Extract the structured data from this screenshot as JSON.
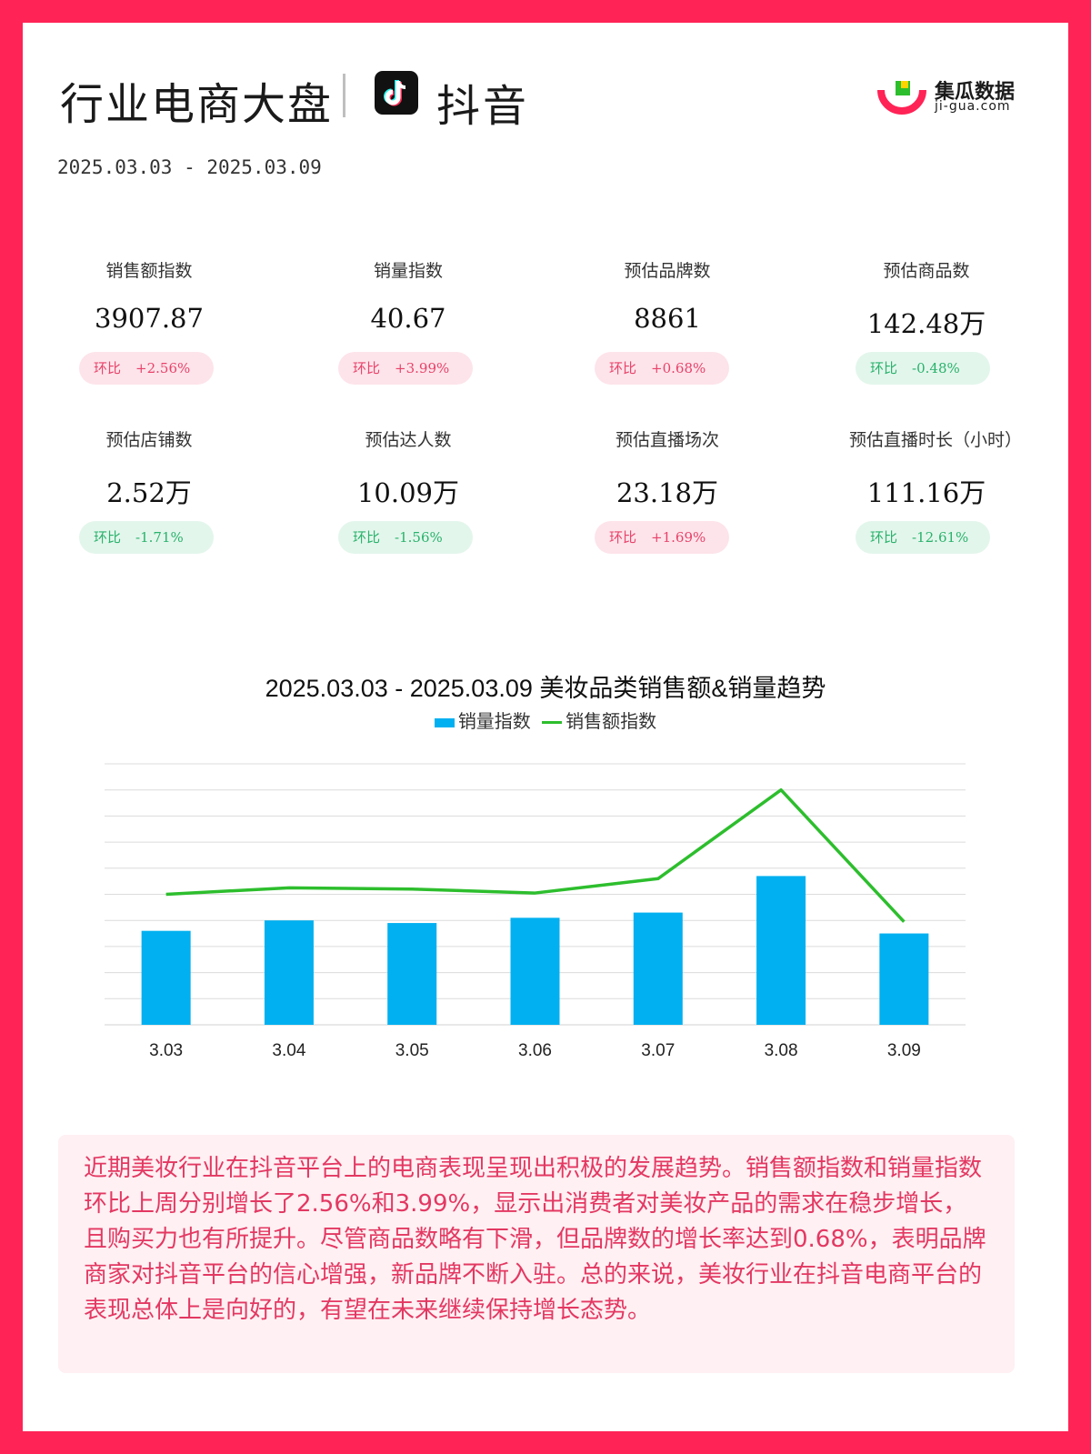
{
  "header": {
    "title": "行业电商大盘",
    "platform": "抖音",
    "date_range": "2025.03.03 - 2025.03.09",
    "logo_name": "集瓜数据",
    "logo_url": "ji-gua.com"
  },
  "colors": {
    "frame": "#ff2356",
    "up_text": "#e8426a",
    "up_bg": "#fde4ea",
    "down_text": "#29b26b",
    "down_bg": "#e3f6ec",
    "bar": "#00b0f0",
    "line": "#2dbe2d"
  },
  "metrics": [
    {
      "label": "销售额指数",
      "value": "3907.87",
      "change_word": "环比",
      "change": "+2.56%",
      "trend": "up"
    },
    {
      "label": "销量指数",
      "value": "40.67",
      "change_word": "环比",
      "change": "+3.99%",
      "trend": "up"
    },
    {
      "label": "预估品牌数",
      "value": "8861",
      "change_word": "环比",
      "change": "+0.68%",
      "trend": "up"
    },
    {
      "label": "预估商品数",
      "value": "142.48万",
      "change_word": "环比",
      "change": "-0.48%",
      "trend": "down"
    },
    {
      "label": "预估店铺数",
      "value": "2.52万",
      "change_word": "环比",
      "change": "-1.71%",
      "trend": "down"
    },
    {
      "label": "预估达人数",
      "value": "10.09万",
      "change_word": "环比",
      "change": "-1.56%",
      "trend": "down"
    },
    {
      "label": "预估直播场次",
      "value": "23.18万",
      "change_word": "环比",
      "change": "+1.69%",
      "trend": "up"
    },
    {
      "label": "预估直播时长（小时）",
      "value": "111.16万",
      "change_word": "环比",
      "change": "-12.61%",
      "trend": "down"
    }
  ],
  "chart_data": {
    "type": "bar",
    "title": "2025.03.03 - 2025.03.09 美妆品类销售额&销量趋势",
    "categories": [
      "3.03",
      "3.04",
      "3.05",
      "3.06",
      "3.07",
      "3.08",
      "3.09"
    ],
    "series": [
      {
        "name": "销量指数",
        "type": "bar",
        "values": [
          36,
          40,
          39,
          41,
          43,
          57,
          35
        ]
      },
      {
        "name": "销售额指数",
        "type": "line",
        "values": [
          50,
          52.5,
          52,
          50.5,
          56,
          90,
          39.5
        ]
      }
    ],
    "ylim": [
      0,
      100
    ],
    "gridlines": 10,
    "legend_position": "top-center",
    "y_axis_labels_shown": false
  },
  "summary": "近期美妆行业在抖音平台上的电商表现呈现出积极的发展趋势。销售额指数和销量指数环比上周分别增长了2.56%和3.99%，显示出消费者对美妆产品的需求在稳步增长，且购买力也有所提升。尽管商品数略有下滑，但品牌数的增长率达到0.68%，表明品牌商家对抖音平台的信心增强，新品牌不断入驻。总的来说，美妆行业在抖音电商平台的表现总体上是向好的，有望在未来继续保持增长态势。"
}
